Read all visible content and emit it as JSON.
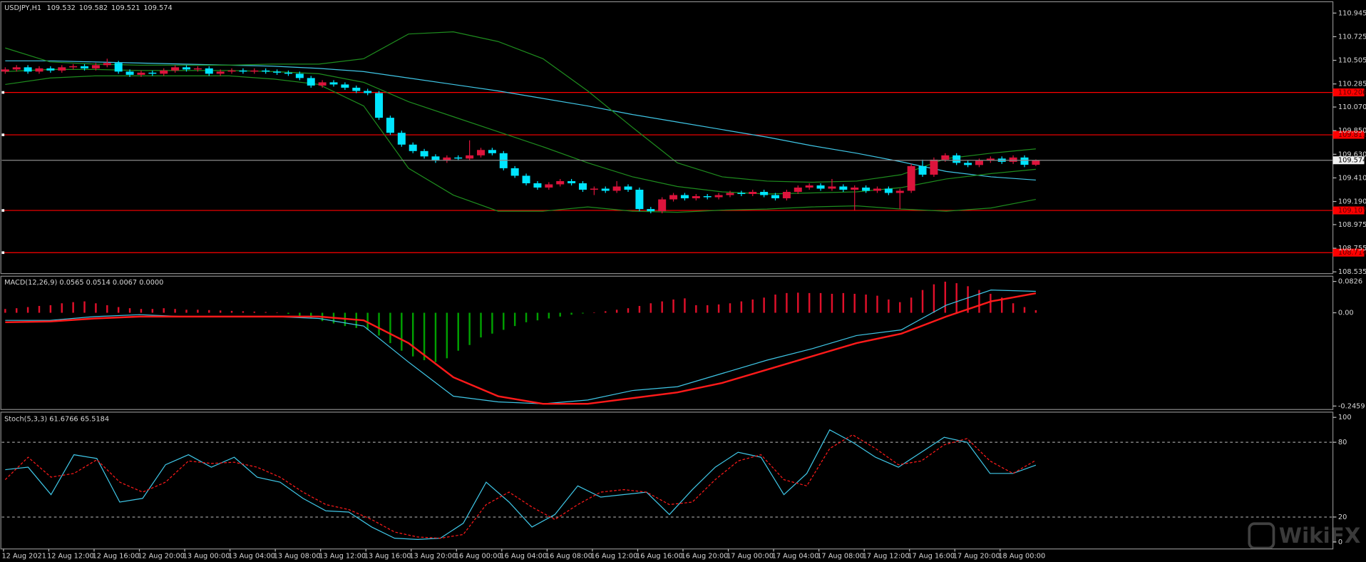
{
  "chart_data": [
    {
      "type": "candlestick",
      "title": "USDJPY,H1",
      "open": [
        110.4,
        110.42,
        110.44,
        110.4,
        110.43,
        110.41,
        110.44,
        110.45,
        110.43,
        110.46,
        110.48,
        110.4,
        110.37,
        110.39,
        110.38,
        110.41,
        110.44,
        110.42,
        110.43,
        110.38,
        110.4,
        110.41,
        110.4,
        110.41,
        110.4,
        110.39,
        110.38,
        110.34,
        110.27,
        110.3,
        110.28,
        110.25,
        110.22,
        110.2,
        109.97,
        109.83,
        109.72,
        109.66,
        109.61,
        109.57,
        109.6,
        109.59,
        109.62,
        109.67,
        109.64,
        109.5,
        109.43,
        109.36,
        109.32,
        109.35,
        109.38,
        109.36,
        109.3,
        109.31,
        109.29,
        109.33,
        109.3,
        109.12,
        109.1,
        109.21,
        109.25,
        109.22,
        109.24,
        109.23,
        109.25,
        109.27,
        109.26,
        109.28,
        109.25,
        109.22,
        109.28,
        109.32,
        109.34,
        109.31,
        109.33,
        109.3,
        109.32,
        109.29,
        109.31,
        109.27,
        109.29,
        109.52,
        109.44,
        109.58,
        109.62,
        109.55,
        109.53,
        109.57,
        109.59,
        109.56,
        109.6,
        109.532
      ],
      "high": [
        110.44,
        110.46,
        110.46,
        110.45,
        110.45,
        110.46,
        110.47,
        110.47,
        110.48,
        110.52,
        110.5,
        110.42,
        110.41,
        110.41,
        110.43,
        110.46,
        110.46,
        110.45,
        110.45,
        110.42,
        110.43,
        110.43,
        110.43,
        110.43,
        110.42,
        110.41,
        110.4,
        110.36,
        110.32,
        110.32,
        110.3,
        110.27,
        110.24,
        110.22,
        109.99,
        109.85,
        109.74,
        109.68,
        109.63,
        109.62,
        109.62,
        109.76,
        109.69,
        109.69,
        109.66,
        109.52,
        109.45,
        109.38,
        109.37,
        109.4,
        109.4,
        109.38,
        109.33,
        109.33,
        109.38,
        109.35,
        109.32,
        109.14,
        109.23,
        109.27,
        109.27,
        109.26,
        109.26,
        109.27,
        109.29,
        109.29,
        109.3,
        109.3,
        109.27,
        109.3,
        109.34,
        109.36,
        109.36,
        109.4,
        109.35,
        109.34,
        109.34,
        109.33,
        109.33,
        109.31,
        109.54,
        109.58,
        109.6,
        109.64,
        109.64,
        109.57,
        109.59,
        109.61,
        109.61,
        109.62,
        109.62,
        109.582
      ],
      "low": [
        110.38,
        110.4,
        110.38,
        110.38,
        110.39,
        110.39,
        110.42,
        110.41,
        110.41,
        110.44,
        110.38,
        110.35,
        110.35,
        110.36,
        110.36,
        110.39,
        110.4,
        110.4,
        110.36,
        110.36,
        110.38,
        110.38,
        110.38,
        110.38,
        110.37,
        110.36,
        110.32,
        110.25,
        110.25,
        110.26,
        110.23,
        110.2,
        110.18,
        109.95,
        109.81,
        109.7,
        109.64,
        109.59,
        109.55,
        109.55,
        109.57,
        109.57,
        109.6,
        109.62,
        109.48,
        109.41,
        109.34,
        109.3,
        109.3,
        109.33,
        109.34,
        109.28,
        109.25,
        109.27,
        109.27,
        109.28,
        109.1,
        109.08,
        109.08,
        109.19,
        109.2,
        109.2,
        109.21,
        109.21,
        109.23,
        109.24,
        109.24,
        109.23,
        109.2,
        109.2,
        109.26,
        109.3,
        109.29,
        109.29,
        109.28,
        109.11,
        109.27,
        109.27,
        109.25,
        109.12,
        109.27,
        109.42,
        109.42,
        109.56,
        109.53,
        109.51,
        109.51,
        109.55,
        109.54,
        109.54,
        109.51,
        109.521
      ],
      "close": [
        110.42,
        110.44,
        110.4,
        110.43,
        110.41,
        110.44,
        110.45,
        110.43,
        110.46,
        110.48,
        110.4,
        110.37,
        110.39,
        110.38,
        110.41,
        110.44,
        110.42,
        110.43,
        110.38,
        110.4,
        110.41,
        110.4,
        110.41,
        110.4,
        110.39,
        110.38,
        110.34,
        110.27,
        110.3,
        110.28,
        110.25,
        110.22,
        110.2,
        109.97,
        109.83,
        109.72,
        109.66,
        109.61,
        109.57,
        109.6,
        109.59,
        109.62,
        109.67,
        109.64,
        109.5,
        109.43,
        109.36,
        109.32,
        109.35,
        109.38,
        109.36,
        109.3,
        109.31,
        109.29,
        109.33,
        109.3,
        109.12,
        109.1,
        109.21,
        109.25,
        109.22,
        109.24,
        109.23,
        109.25,
        109.27,
        109.26,
        109.28,
        109.25,
        109.22,
        109.28,
        109.32,
        109.34,
        109.31,
        109.33,
        109.3,
        109.32,
        109.29,
        109.31,
        109.27,
        109.29,
        109.52,
        109.44,
        109.58,
        109.62,
        109.55,
        109.53,
        109.57,
        109.59,
        109.56,
        109.6,
        109.532,
        109.574
      ],
      "colors": {
        "up": "#dc143c",
        "down": "#00e5ff"
      },
      "series": [
        {
          "color": "#3fc6e6",
          "values": [
            110.5,
            110.5,
            110.49,
            110.48,
            110.47,
            110.46,
            110.45,
            110.43,
            110.4,
            110.34,
            110.28,
            110.22,
            110.15,
            110.08,
            110.0,
            109.93,
            109.86,
            109.79,
            109.71,
            109.64,
            109.56,
            109.47,
            109.42,
            109.39
          ]
        },
        {
          "color": "#1e8c1e",
          "values": [
            110.62,
            110.49,
            110.47,
            110.46,
            110.46,
            110.46,
            110.47,
            110.47,
            110.52,
            110.75,
            110.77,
            110.68,
            110.52,
            110.22,
            109.88,
            109.55,
            109.42,
            109.38,
            109.37,
            109.38,
            109.44,
            109.59,
            109.64,
            109.68
          ]
        },
        {
          "color": "#1e8c1e",
          "values": [
            110.4,
            110.42,
            110.42,
            110.41,
            110.41,
            110.41,
            110.4,
            110.38,
            110.3,
            110.12,
            109.98,
            109.84,
            109.7,
            109.55,
            109.42,
            109.33,
            109.28,
            109.26,
            109.27,
            109.28,
            109.32,
            109.4,
            109.45,
            109.49
          ]
        },
        {
          "color": "#1e8c1e",
          "values": [
            110.28,
            110.34,
            110.36,
            110.36,
            110.36,
            110.36,
            110.33,
            110.28,
            110.08,
            109.5,
            109.25,
            109.1,
            109.1,
            109.14,
            109.1,
            109.09,
            109.11,
            109.12,
            109.14,
            109.15,
            109.12,
            109.1,
            109.13,
            109.21
          ]
        }
      ],
      "levels": [
        110.206,
        109.811,
        109.107,
        108.714
      ],
      "level_color": "#ff0000",
      "ylim": [
        108.535,
        110.945
      ],
      "yticks": [
        110.945,
        110.725,
        110.505,
        110.285,
        {
          "value": 110.07,
          "label": "110.070"
        },
        {
          "value": 109.85,
          "label": "109.850"
        },
        {
          "value": 109.63,
          "label": "109.630"
        },
        {
          "value": 109.41,
          "label": "109.410"
        },
        {
          "value": 109.19,
          "label": "109.190"
        },
        108.975,
        108.755,
        108.535
      ]
    },
    {
      "type": "macd",
      "title": "MACD(12,26,9) 0.0565 0.0514 0.0067 0.0000",
      "values": [
        0.01,
        0.012,
        0.015,
        0.018,
        0.02,
        0.025,
        0.028,
        0.03,
        0.025,
        0.02,
        0.015,
        0.012,
        0.01,
        0.01,
        0.012,
        0.01,
        0.008,
        0.008,
        0.007,
        0.006,
        0.005,
        0.004,
        0.003,
        0.002,
        0.001,
        -0.003,
        -0.008,
        -0.015,
        -0.022,
        -0.028,
        -0.035,
        -0.04,
        -0.045,
        -0.06,
        -0.08,
        -0.1,
        -0.115,
        -0.125,
        -0.13,
        -0.12,
        -0.1,
        -0.085,
        -0.065,
        -0.055,
        -0.045,
        -0.035,
        -0.025,
        -0.02,
        -0.015,
        -0.01,
        -0.005,
        -0.002,
        0.001,
        0.004,
        0.008,
        0.012,
        0.018,
        0.025,
        0.03,
        0.035,
        0.038,
        0.02,
        0.02,
        0.022,
        0.025,
        0.03,
        0.035,
        0.04,
        0.048,
        0.052,
        0.053,
        0.052,
        0.052,
        0.05,
        0.052,
        0.05,
        0.048,
        0.045,
        0.035,
        0.028,
        0.04,
        0.06,
        0.075,
        0.082,
        0.078,
        0.07,
        0.06,
        0.05,
        0.04,
        0.025,
        0.015,
        0.0067
      ],
      "colors": {
        "up": "#e0102a",
        "down": "#00a000"
      },
      "series": [
        {
          "color": "#3fc6e6",
          "width": 1,
          "values": [
            -0.02,
            -0.02,
            -0.01,
            -0.005,
            -0.01,
            -0.01,
            -0.01,
            -0.015,
            -0.035,
            -0.13,
            -0.22,
            -0.235,
            -0.24,
            -0.23,
            -0.205,
            -0.195,
            -0.16,
            -0.125,
            -0.095,
            -0.06,
            -0.045,
            0.02,
            0.06,
            0.0565
          ]
        },
        {
          "color": "#ff1a1a",
          "width": 2,
          "values": [
            -0.025,
            -0.023,
            -0.015,
            -0.01,
            -0.01,
            -0.01,
            -0.01,
            -0.01,
            -0.02,
            -0.08,
            -0.17,
            -0.22,
            -0.24,
            -0.24,
            -0.225,
            -0.21,
            -0.185,
            -0.15,
            -0.115,
            -0.08,
            -0.055,
            -0.01,
            0.03,
            0.0514
          ]
        }
      ],
      "ylim": [
        -0.2459,
        0.0826
      ],
      "yticks": [
        0.0826,
        {
          "value": 0,
          "label": "0.00"
        },
        -0.2459
      ]
    },
    {
      "type": "line",
      "title": "Stoch(5,3,3) 61.6766 65.5184",
      "series": [
        {
          "color": "#3fc6e6",
          "dash": false,
          "values": [
            58,
            60,
            38,
            70,
            67,
            32,
            35,
            62,
            70,
            60,
            68,
            52,
            48,
            35,
            25,
            24,
            12,
            3,
            2,
            3,
            15,
            48,
            32,
            12,
            22,
            45,
            36,
            38,
            40,
            22,
            42,
            60,
            72,
            68,
            38,
            55,
            90,
            80,
            68,
            60,
            72,
            84,
            80,
            55,
            55,
            61.68
          ]
        },
        {
          "color": "#ff1a1a",
          "dash": true,
          "values": [
            50,
            68,
            52,
            55,
            66,
            48,
            40,
            48,
            65,
            63,
            64,
            60,
            52,
            40,
            30,
            26,
            18,
            8,
            4,
            3,
            6,
            30,
            40,
            28,
            18,
            30,
            40,
            42,
            40,
            30,
            32,
            50,
            65,
            70,
            50,
            45,
            75,
            86,
            75,
            62,
            65,
            78,
            83,
            65,
            55,
            65.52
          ]
        }
      ],
      "ylim": [
        0,
        100
      ],
      "yticks": [
        100,
        80,
        20,
        0
      ]
    }
  ],
  "time_axis": {
    "labels": [
      "12 Aug 2021",
      "12 Aug 12:00",
      "12 Aug 16:00",
      "12 Aug 20:00",
      "13 Aug 00:00",
      "13 Aug 04:00",
      "13 Aug 08:00",
      "13 Aug 12:00",
      "13 Aug 16:00",
      "13 Aug 20:00",
      "16 Aug 00:00",
      "16 Aug 04:00",
      "16 Aug 08:00",
      "16 Aug 12:00",
      "16 Aug 16:00",
      "16 Aug 20:00",
      "17 Aug 00:00",
      "17 Aug 04:00",
      "17 Aug 08:00",
      "17 Aug 12:00",
      "17 Aug 16:00",
      "17 Aug 20:00",
      "18 Aug 00:00"
    ]
  },
  "watermark": "WikiFX"
}
